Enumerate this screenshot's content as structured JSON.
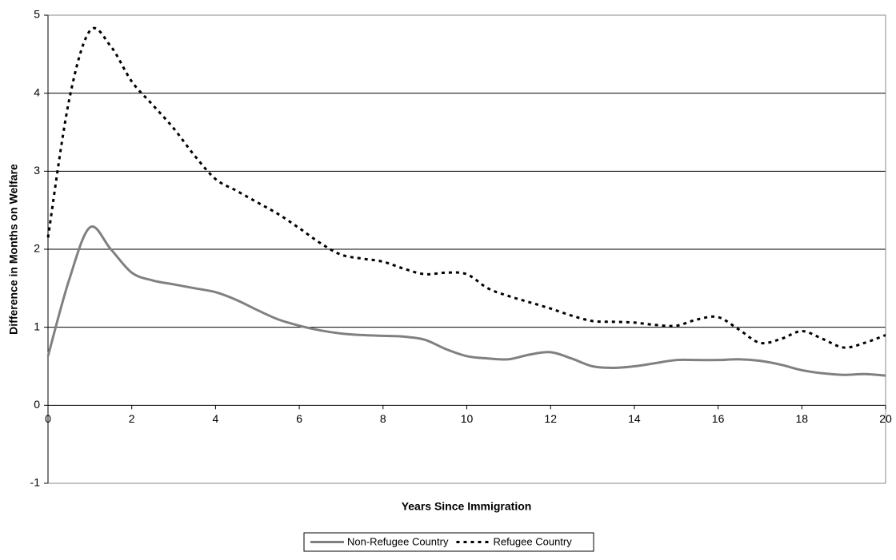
{
  "chart_data": {
    "type": "line",
    "x_label": "Years Since Immigration",
    "y_label": "Difference in Months on Welfare",
    "x": [
      0,
      0.5,
      1,
      1.5,
      2,
      2.5,
      3,
      3.5,
      4,
      4.5,
      5,
      5.5,
      6,
      6.5,
      7,
      7.5,
      8,
      8.5,
      9,
      9.5,
      10,
      10.5,
      11,
      11.5,
      12,
      12.5,
      13,
      13.5,
      14,
      14.5,
      15,
      15.5,
      16,
      16.5,
      17,
      17.5,
      18,
      18.5,
      19,
      19.5,
      20
    ],
    "series": [
      {
        "name": "Non-Refugee Country",
        "color": "#808080",
        "style": "solid",
        "values": [
          0.63,
          1.6,
          2.28,
          2.0,
          1.7,
          1.6,
          1.55,
          1.5,
          1.45,
          1.35,
          1.22,
          1.1,
          1.02,
          0.96,
          0.92,
          0.9,
          0.89,
          0.88,
          0.84,
          0.72,
          0.63,
          0.6,
          0.59,
          0.65,
          0.68,
          0.6,
          0.5,
          0.48,
          0.5,
          0.54,
          0.58,
          0.58,
          0.58,
          0.59,
          0.57,
          0.52,
          0.45,
          0.41,
          0.39,
          0.4,
          0.38
        ]
      },
      {
        "name": "Refugee Country",
        "color": "#000000",
        "style": "dotted",
        "values": [
          2.15,
          3.9,
          4.8,
          4.6,
          4.15,
          3.85,
          3.55,
          3.2,
          2.9,
          2.75,
          2.6,
          2.45,
          2.27,
          2.08,
          1.93,
          1.88,
          1.84,
          1.75,
          1.68,
          1.7,
          1.68,
          1.5,
          1.4,
          1.32,
          1.24,
          1.15,
          1.08,
          1.07,
          1.06,
          1.03,
          1.02,
          1.1,
          1.13,
          0.97,
          0.8,
          0.85,
          0.95,
          0.85,
          0.74,
          0.8,
          0.9
        ]
      }
    ],
    "xlim": [
      0,
      20
    ],
    "xticks": [
      0,
      2,
      4,
      6,
      8,
      10,
      12,
      14,
      16,
      18,
      20
    ],
    "ylim": [
      -1,
      5
    ],
    "yticks": [
      -1,
      0,
      1,
      2,
      3,
      4,
      5
    ],
    "grid": true,
    "legend": "bottom"
  }
}
